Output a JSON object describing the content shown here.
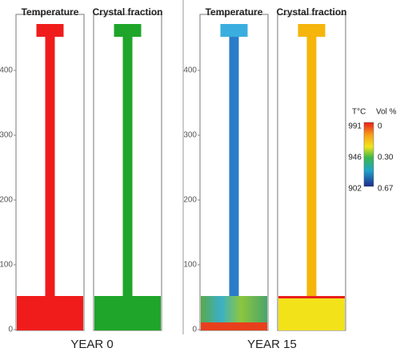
{
  "panels": [
    {
      "label": "YEAR 0",
      "titles": [
        "Temperature",
        "Crystal fraction"
      ],
      "yticks": [
        "0",
        "100",
        "200",
        "300",
        "400"
      ]
    },
    {
      "label": "YEAR 15",
      "titles": [
        "Temperature",
        "Crystal fraction"
      ],
      "yticks": [
        "0",
        "100",
        "200",
        "300",
        "400"
      ]
    }
  ],
  "colorbar": {
    "left_title": "T°C",
    "right_title": "Vol %",
    "left_labels": [
      "991",
      "946",
      "902"
    ],
    "right_labels": [
      "0",
      "0.30",
      "0.67"
    ]
  }
}
